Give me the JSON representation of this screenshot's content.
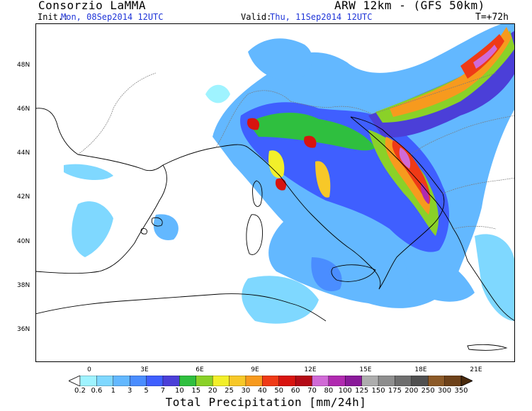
{
  "header": {
    "org": "Consorzio LaMMA",
    "model": "ARW 12km - (GFS 50km)",
    "init_label": "Init.:",
    "init_value": "Mon, 08Sep2014 12UTC",
    "valid_label": "Valid:",
    "valid_value": "Thu, 11Sep2014 12UTC",
    "lead_time": "T=+72h"
  },
  "map": {
    "lat_labels": [
      "48N",
      "46N",
      "44N",
      "42N",
      "40N",
      "38N",
      "36N"
    ],
    "lon_labels": [
      "0",
      "3E",
      "6E",
      "9E",
      "12E",
      "15E",
      "18E",
      "21E"
    ],
    "lon_range": [
      -3,
      23
    ],
    "lat_range": [
      34.8,
      49.8
    ],
    "land_color": "#ffffff",
    "coast_color": "#000000"
  },
  "colorbar": {
    "title": "Total Precipitation [mm/24h]",
    "levels": [
      "0.2",
      "0.6",
      "1",
      "3",
      "5",
      "7",
      "10",
      "15",
      "20",
      "25",
      "30",
      "40",
      "50",
      "60",
      "70",
      "80",
      "100",
      "125",
      "150",
      "175",
      "200",
      "250",
      "300",
      "350"
    ],
    "colors": [
      "#9ff3ff",
      "#7fd8ff",
      "#63b8ff",
      "#4a8dff",
      "#3f5fff",
      "#4b3fd8",
      "#2fbf3f",
      "#8ad128",
      "#f2ef2a",
      "#f7c828",
      "#f79a1e",
      "#ef3a16",
      "#d8140f",
      "#b40a16",
      "#d06ad6",
      "#b02ab0",
      "#8a1a9a",
      "#adadad",
      "#8e8e8e",
      "#6e6e6e",
      "#505050",
      "#8c5a28",
      "#6e421a",
      "#4a2a0c"
    ]
  }
}
